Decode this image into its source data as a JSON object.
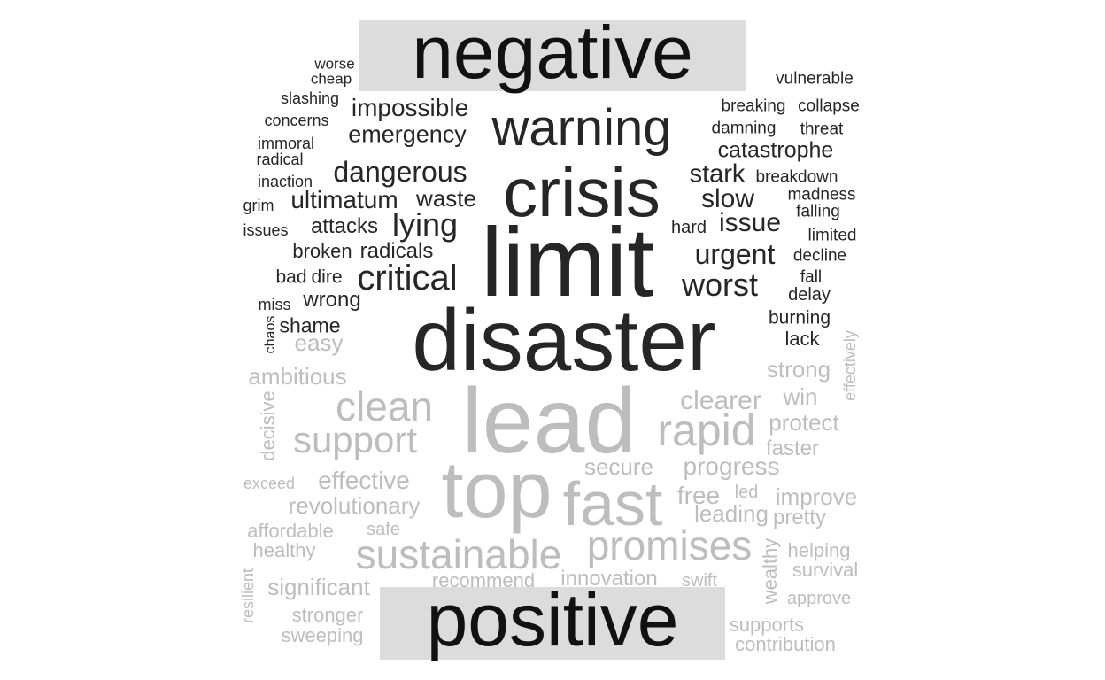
{
  "header_label": "negative",
  "footer_label": "positive",
  "colors": {
    "negative_words": "#262626",
    "positive_words": "#bdbdbd",
    "label_band": "#dcdcdc",
    "label_text": "#111111"
  },
  "negative_words": [
    "worse",
    "cheap",
    "slashing",
    "concerns",
    "immoral",
    "radical",
    "inaction",
    "grim",
    "issues",
    "impossible",
    "emergency",
    "dangerous",
    "ultimatum",
    "attacks",
    "broken",
    "radicals",
    "bad",
    "dire",
    "critical",
    "wrong",
    "miss",
    "shame",
    "chaos",
    "warning",
    "crisis",
    "limit",
    "disaster",
    "lying",
    "waste",
    "vulnerable",
    "breaking",
    "collapse",
    "damning",
    "threat",
    "catastrophe",
    "stark",
    "breakdown",
    "slow",
    "madness",
    "falling",
    "hard",
    "issue",
    "limited",
    "urgent",
    "decline",
    "worst",
    "fall",
    "delay",
    "burning",
    "lack"
  ],
  "positive_words": [
    "easy",
    "ambitious",
    "clean",
    "decisive",
    "support",
    "exceed",
    "effective",
    "revolutionary",
    "affordable",
    "safe",
    "healthy",
    "significant",
    "resilient",
    "stronger",
    "sweeping",
    "lead",
    "top",
    "fast",
    "sustainable",
    "recommend",
    "innovation",
    "swift",
    "secure",
    "progress",
    "clearer",
    "rapid",
    "strong",
    "win",
    "effectively",
    "protect",
    "faster",
    "free",
    "led",
    "improve",
    "leading",
    "pretty",
    "promises",
    "wealthy",
    "helping",
    "survival",
    "approve",
    "supports",
    "contribution"
  ]
}
